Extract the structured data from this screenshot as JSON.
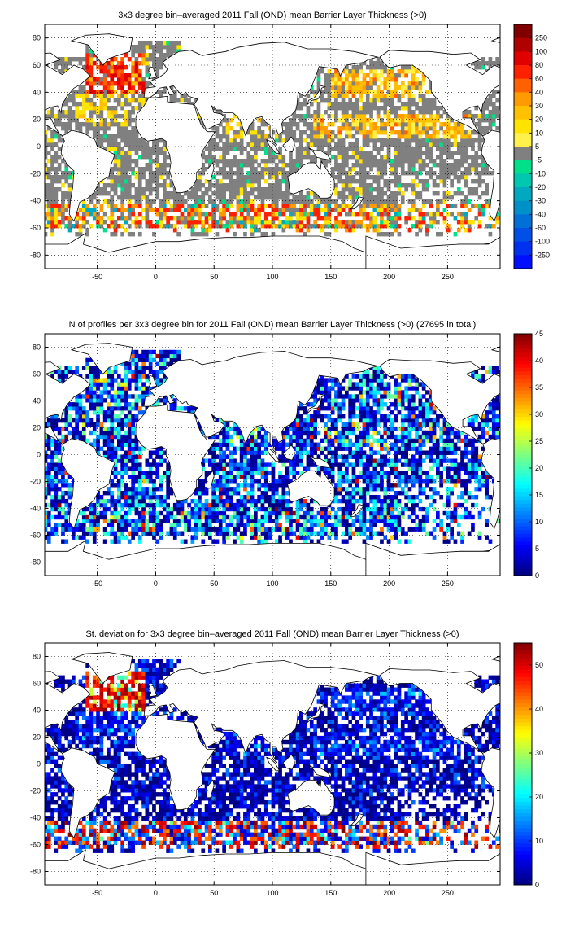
{
  "chart_data": [
    {
      "type": "heatmap",
      "title": "3x3 degree bin–averaged 2011 Fall (OND) mean Barrier Layer Thickness (>0)",
      "xlim": [
        -95,
        295
      ],
      "ylim": [
        -90,
        90
      ],
      "xticks": [
        "-50",
        "0",
        "50",
        "100",
        "150",
        "200",
        "250"
      ],
      "xtick_values": [
        -50,
        0,
        50,
        100,
        150,
        200,
        250
      ],
      "yticks": [
        "80",
        "60",
        "40",
        "20",
        "0",
        "-20",
        "-40",
        "-60",
        "-80"
      ],
      "ytick_values": [
        80,
        60,
        40,
        20,
        0,
        -20,
        -40,
        -60,
        -80
      ],
      "colorbar": {
        "scale": "categorical",
        "labels": [
          "250",
          "100",
          "80",
          "60",
          "40",
          "30",
          "20",
          "10",
          "5",
          "-5",
          "-10",
          "-20",
          "-30",
          "-40",
          "-60",
          "-100",
          "-250"
        ],
        "colors": [
          "#800000",
          "#b00000",
          "#e00000",
          "#ff2000",
          "#ff6000",
          "#ff9a00",
          "#ffc000",
          "#ffe400",
          "#fff14a",
          "#808080",
          "#00e08a",
          "#00c8b0",
          "#00a8c0",
          "#0090c8",
          "#0070d8",
          "#0050e8",
          "#0030f0",
          "#0010ff"
        ]
      },
      "grid": true
    },
    {
      "type": "heatmap",
      "title": "N of profiles per 3x3 degree bin for 2011 Fall (OND) mean Barrier Layer Thickness (>0) (27695 in total)",
      "xlim": [
        -95,
        295
      ],
      "ylim": [
        -90,
        90
      ],
      "xticks": [
        "-50",
        "0",
        "50",
        "100",
        "150",
        "200",
        "250"
      ],
      "xtick_values": [
        -50,
        0,
        50,
        100,
        150,
        200,
        250
      ],
      "yticks": [
        "80",
        "60",
        "40",
        "20",
        "0",
        "-20",
        "-40",
        "-60",
        "-80"
      ],
      "ytick_values": [
        80,
        60,
        40,
        20,
        0,
        -20,
        -40,
        -60,
        -80
      ],
      "colorbar": {
        "scale": "continuous",
        "range": [
          0,
          45
        ],
        "labels": [
          "45",
          "40",
          "35",
          "30",
          "25",
          "20",
          "15",
          "10",
          "5",
          "0"
        ],
        "label_values": [
          45,
          40,
          35,
          30,
          25,
          20,
          15,
          10,
          5,
          0
        ]
      },
      "grid": true
    },
    {
      "type": "heatmap",
      "title": "St. deviation for 3x3 degree bin–averaged 2011 Fall (OND) mean Barrier Layer Thickness (>0)",
      "xlim": [
        -95,
        295
      ],
      "ylim": [
        -90,
        90
      ],
      "xticks": [
        "-50",
        "0",
        "50",
        "100",
        "150",
        "200",
        "250"
      ],
      "xtick_values": [
        -50,
        0,
        50,
        100,
        150,
        200,
        250
      ],
      "yticks": [
        "80",
        "60",
        "40",
        "20",
        "0",
        "-20",
        "-40",
        "-60",
        "-80"
      ],
      "ytick_values": [
        80,
        60,
        40,
        20,
        0,
        -20,
        -40,
        -60,
        -80
      ],
      "colorbar": {
        "scale": "continuous",
        "range": [
          0,
          55
        ],
        "labels": [
          "50",
          "40",
          "30",
          "20",
          "10",
          "0"
        ],
        "label_values": [
          50,
          40,
          30,
          20,
          10,
          0
        ]
      },
      "grid": true
    }
  ]
}
